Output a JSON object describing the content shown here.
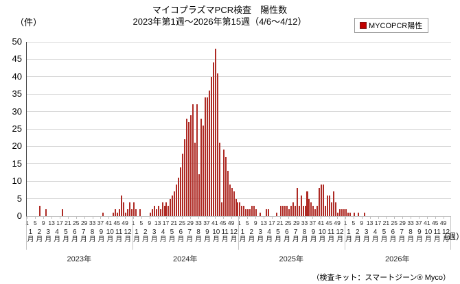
{
  "title": "マイコプラズマPCR検査　陽性数",
  "subtitle": "2023年第1週～2026年第15週（4/6～4/12）",
  "y_axis_unit_label": "（件）",
  "x_axis_unit_label": "（週）",
  "footnote": "（検査キット：スマートジーン® Myco）",
  "legend": {
    "label": "MYCOPCR陽性",
    "marker_color": "#c00000"
  },
  "colors": {
    "bar_fill": "#ae2a24",
    "legend_marker": "#c00000",
    "gridline": "#d9d9d9",
    "axis_line": "#404040"
  },
  "chart_data": {
    "type": "bar",
    "title": "マイコプラズマPCR検査　陽性数",
    "subtitle": "2023年第1週～2026年第15週（4/6～4/12）",
    "ylabel": "（件）",
    "xlabel": "（週）",
    "ylim": [
      0,
      50
    ],
    "ytick_step": 5,
    "grid": "horizontal",
    "legend_position": "top-right",
    "legend_entries": [
      "MYCOPCR陽性"
    ],
    "weeks_per_year_axis": 52,
    "week_tick_labels": [
      "1",
      "5",
      "9",
      "13",
      "17",
      "21",
      "25",
      "29",
      "33",
      "37",
      "41",
      "45",
      "49"
    ],
    "month_labels": [
      "1月",
      "2月",
      "3月",
      "4月",
      "5月",
      "6月",
      "7月",
      "8月",
      "9月",
      "10月",
      "11月",
      "12月"
    ],
    "years": [
      {
        "label": "2023年",
        "values": [
          0,
          0,
          0,
          0,
          0,
          0,
          3,
          0,
          0,
          2,
          0,
          0,
          0,
          0,
          0,
          0,
          0,
          2,
          0,
          0,
          0,
          0,
          0,
          0,
          0,
          0,
          0,
          0,
          0,
          0,
          0,
          0,
          0,
          0,
          0,
          0,
          0,
          1,
          0,
          0,
          0,
          0,
          1,
          2,
          1,
          2,
          6,
          4,
          1,
          2,
          4,
          2
        ]
      },
      {
        "label": "2024年",
        "values": [
          4,
          2,
          0,
          2,
          0,
          0,
          0,
          0,
          1,
          2,
          3,
          2,
          3,
          2,
          4,
          3,
          4,
          3,
          5,
          6,
          7,
          9,
          11,
          14,
          18,
          22,
          28,
          27,
          29,
          32,
          21,
          32,
          12,
          28,
          26,
          34,
          34,
          36,
          40,
          44,
          48,
          41,
          21,
          4,
          19,
          17,
          13,
          9,
          8,
          7,
          5,
          4
        ]
      },
      {
        "label": "2025年",
        "values": [
          4,
          3,
          3,
          2,
          2,
          2,
          3,
          3,
          2,
          0,
          1,
          0,
          0,
          2,
          2,
          0,
          0,
          0,
          1,
          0,
          3,
          3,
          3,
          3,
          2,
          3,
          4,
          3,
          8,
          3,
          6,
          3,
          3,
          7,
          5,
          4,
          3,
          2,
          3,
          8,
          9,
          9,
          3,
          6,
          6,
          4,
          7,
          4,
          1,
          2,
          2,
          2
        ]
      },
      {
        "label": "2026年",
        "values": [
          2,
          1,
          1,
          0,
          1,
          0,
          1,
          0,
          0,
          1,
          0,
          0,
          0,
          0,
          0
        ]
      }
    ]
  }
}
